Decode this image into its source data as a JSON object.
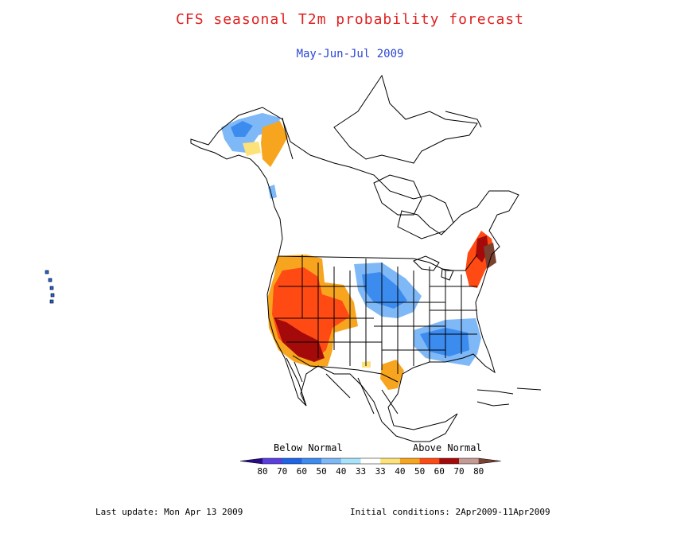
{
  "title": "CFS seasonal T2m probability forecast",
  "subtitle": "May-Jun-Jul 2009",
  "legend": {
    "below_label": "Below Normal",
    "above_label": "Above Normal",
    "ticks": [
      "80",
      "70",
      "60",
      "50",
      "40",
      "33",
      "33",
      "40",
      "50",
      "60",
      "70",
      "80"
    ],
    "colors": [
      "#2a0a8a",
      "#5a3ee0",
      "#1e64e6",
      "#3c8cf0",
      "#7fb8f7",
      "#a9e2fb",
      "#ffffff",
      "#fde27a",
      "#f7a51e",
      "#ff4a14",
      "#a50a0a",
      "#c49a94",
      "#7a4030"
    ]
  },
  "footer": {
    "last_update": "Last update: Mon Apr 13 2009",
    "initial_conditions": "Initial conditions: 2Apr2009-11Apr2009"
  }
}
